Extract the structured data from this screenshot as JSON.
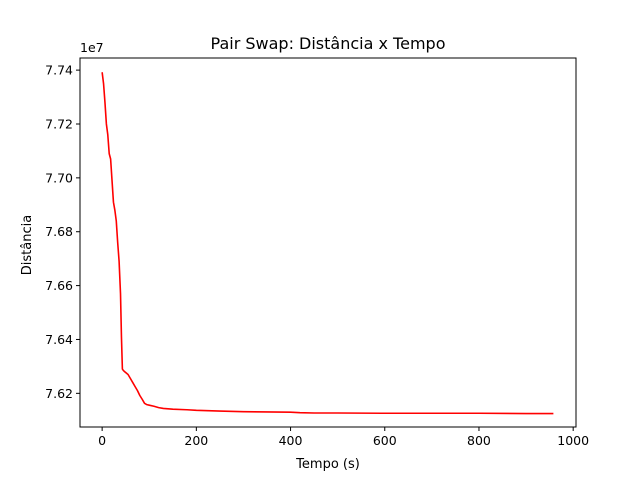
{
  "chart_data": {
    "type": "line",
    "title": "Pair Swap: Distância x Tempo",
    "xlabel": "Tempo (s)",
    "ylabel": "Distância",
    "y_offset_label": "1e7",
    "y_scale": 10000000,
    "xlim": [
      -47,
      1006
    ],
    "ylim": [
      7.6075,
      7.7445
    ],
    "x_ticks": [
      0,
      200,
      400,
      600,
      800,
      1000
    ],
    "x_tick_labels": [
      "0",
      "200",
      "400",
      "600",
      "800",
      "1000"
    ],
    "y_ticks": [
      7.62,
      7.64,
      7.66,
      7.68,
      7.7,
      7.72,
      7.74
    ],
    "y_tick_labels": [
      "7.62",
      "7.64",
      "7.66",
      "7.68",
      "7.70",
      "7.72",
      "7.74"
    ],
    "grid": false,
    "series": [
      {
        "color": "#ff0000",
        "x": [
          0,
          3,
          6,
          9,
          12,
          15,
          18,
          21,
          24,
          27,
          30,
          33,
          36,
          39,
          41,
          43,
          45,
          48,
          55,
          60,
          65,
          70,
          75,
          80,
          85,
          90,
          95,
          100,
          110,
          120,
          130,
          150,
          180,
          200,
          250,
          300,
          350,
          400,
          420,
          450,
          500,
          600,
          700,
          800,
          900,
          958
        ],
        "y": [
          7.7392,
          7.735,
          7.728,
          7.72,
          7.716,
          7.709,
          7.707,
          7.699,
          7.691,
          7.688,
          7.684,
          7.676,
          7.669,
          7.657,
          7.641,
          7.629,
          7.6285,
          7.628,
          7.627,
          7.6255,
          7.624,
          7.6225,
          7.621,
          7.6192,
          7.6178,
          7.6163,
          7.6158,
          7.6156,
          7.6152,
          7.6147,
          7.6144,
          7.6141,
          7.6139,
          7.6137,
          7.6134,
          7.6132,
          7.6131,
          7.613,
          7.6128,
          7.6127,
          7.6127,
          7.6126,
          7.6126,
          7.6126,
          7.6125,
          7.6125
        ]
      }
    ]
  }
}
